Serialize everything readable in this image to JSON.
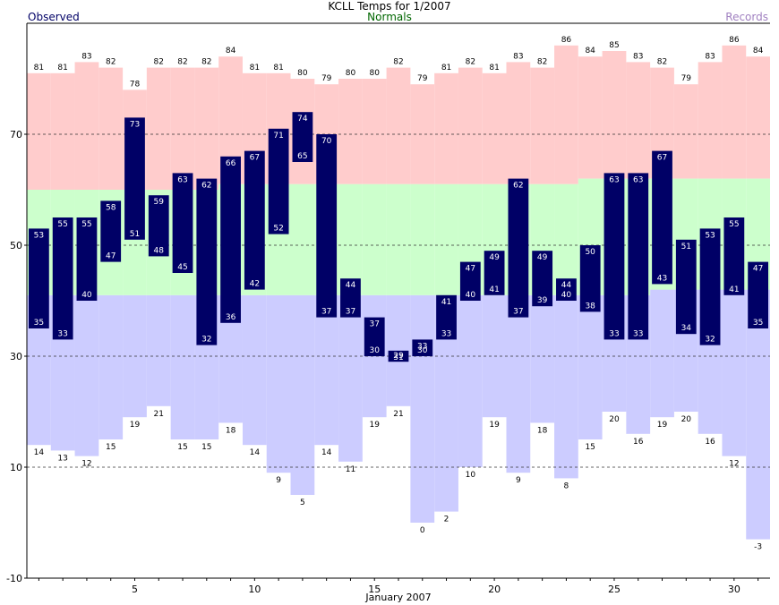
{
  "header": {
    "title": "KCLL Temps for 1/2007",
    "observed_label": "Observed",
    "normals_label": "Normals",
    "records_label": "Records"
  },
  "colors": {
    "observed": "#000066",
    "record_high_fill": "#ffcccc",
    "normal_fill": "#ccffcc",
    "record_low_fill": "#ccccff",
    "observed_text": "#ffffff",
    "normals_text": "#006600",
    "records_text": "#a080c0"
  },
  "chart_data": {
    "type": "bar",
    "title": "KCLL Temps for 1/2007",
    "xlabel": "January 2007",
    "ylabel": "",
    "ylim": [
      -10,
      90
    ],
    "xlim": [
      0.5,
      31.5
    ],
    "y_ticks": [
      -10,
      10,
      30,
      50,
      70
    ],
    "x_ticks": [
      5,
      10,
      15,
      20,
      25,
      30
    ],
    "grid": "dashed horizontal lines at 10, 30, 50, 70",
    "legend": "top labels: Observed (left), Normals (center), Records (right)",
    "days": [
      1,
      2,
      3,
      4,
      5,
      6,
      7,
      8,
      9,
      10,
      11,
      12,
      13,
      14,
      15,
      16,
      17,
      18,
      19,
      20,
      21,
      22,
      23,
      24,
      25,
      26,
      27,
      28,
      29,
      30,
      31
    ],
    "series": [
      {
        "name": "Observed",
        "high": [
          53,
          55,
          55,
          58,
          73,
          59,
          63,
          62,
          66,
          67,
          71,
          74,
          70,
          44,
          37,
          31,
          33,
          41,
          47,
          49,
          62,
          49,
          44,
          50,
          63,
          63,
          67,
          51,
          53,
          55,
          47
        ],
        "low": [
          35,
          33,
          40,
          47,
          51,
          48,
          45,
          32,
          36,
          42,
          52,
          65,
          37,
          37,
          30,
          29,
          30,
          33,
          40,
          41,
          37,
          39,
          40,
          38,
          33,
          33,
          43,
          34,
          32,
          41,
          35
        ]
      },
      {
        "name": "Normals",
        "high": [
          60,
          60,
          60,
          60,
          60,
          60,
          60,
          60,
          61,
          61,
          61,
          61,
          61,
          61,
          61,
          61,
          61,
          61,
          61,
          61,
          61,
          61,
          61,
          62,
          62,
          62,
          62,
          62,
          62,
          62,
          62
        ],
        "low": [
          41,
          41,
          41,
          41,
          41,
          41,
          41,
          41,
          41,
          41,
          41,
          41,
          41,
          41,
          41,
          41,
          41,
          41,
          41,
          41,
          41,
          41,
          41,
          41,
          41,
          41,
          42,
          42,
          42,
          42,
          42
        ]
      },
      {
        "name": "Records",
        "high": [
          81,
          81,
          83,
          82,
          78,
          82,
          82,
          82,
          84,
          81,
          81,
          80,
          79,
          80,
          80,
          82,
          79,
          81,
          82,
          81,
          83,
          82,
          86,
          84,
          85,
          83,
          82,
          79,
          83,
          86,
          84
        ],
        "low": [
          14,
          13,
          12,
          15,
          19,
          21,
          15,
          15,
          18,
          14,
          9,
          5,
          14,
          11,
          19,
          21,
          0,
          2,
          10,
          19,
          9,
          18,
          8,
          15,
          20,
          16,
          19,
          20,
          16,
          12,
          -3
        ]
      }
    ]
  }
}
